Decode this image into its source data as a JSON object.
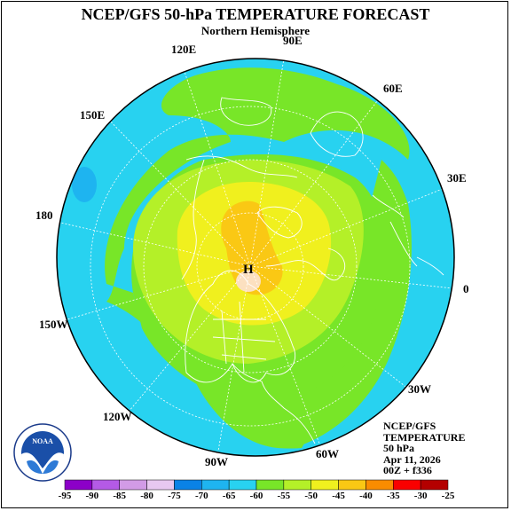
{
  "header": {
    "title": "NCEP/GFS 50-hPa TEMPERATURE FORECAST",
    "subtitle": "Northern Hemisphere"
  },
  "longitude_labels": [
    "90E",
    "120E",
    "60E",
    "150E",
    "30E",
    "180",
    "0",
    "150W",
    "30W",
    "120W",
    "90W",
    "60W"
  ],
  "high_marker": "H",
  "info": {
    "source": "NCEP/GFS",
    "field": "TEMPERATURE",
    "level": "50 hPa",
    "date": "Apr 11, 2026",
    "run": "00Z + f336"
  },
  "logo": {
    "text": "NOAA"
  },
  "colorbar": {
    "levels": [
      "-95",
      "-90",
      "-85",
      "-80",
      "-75",
      "-70",
      "-65",
      "-60",
      "-55",
      "-50",
      "-45",
      "-40",
      "-35",
      "-30",
      "-25"
    ],
    "colors": [
      "#8c00c8",
      "#b45ae6",
      "#d29be6",
      "#e8c8f0",
      "#0a82e6",
      "#1eb4f0",
      "#28d2f0",
      "#78e628",
      "#b4f028",
      "#f0f01e",
      "#fac814",
      "#fa8c00",
      "#fa0000",
      "#b40000",
      "#8c3c3c"
    ]
  }
}
